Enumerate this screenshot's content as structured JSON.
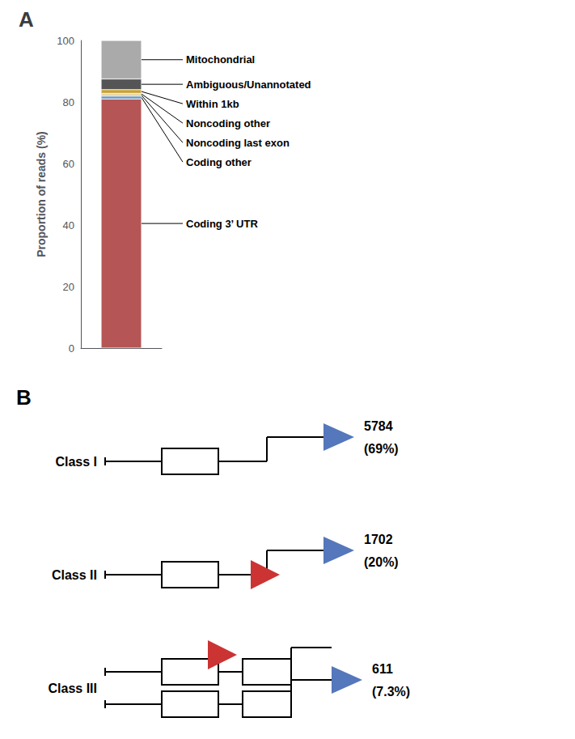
{
  "chart_data": [
    {
      "type": "bar",
      "title": "A",
      "stacked": true,
      "tick_labels": "y",
      "ylabel": "Proportion of reads (%)",
      "categories": [
        null
      ],
      "ylim": [
        0,
        100
      ],
      "yticks": [
        0,
        20,
        40,
        60,
        80,
        100
      ],
      "series": [
        {
          "name": "Coding 3’ UTR",
          "color": "#b55555",
          "values": [
            81.0
          ]
        },
        {
          "name": "Coding other",
          "color": "#6699cc",
          "values": [
            0.9
          ]
        },
        {
          "name": "Noncoding last exon",
          "color": "#c8a030",
          "values": [
            0.5
          ]
        },
        {
          "name": "Noncoding other",
          "color": "#c8a030",
          "values": [
            0.4
          ]
        },
        {
          "name": "Within 1kb",
          "color": "#c8a030",
          "values": [
            1.2
          ]
        },
        {
          "name": "Ambiguous/Unannotated",
          "color": "#555555",
          "values": [
            3.5
          ]
        },
        {
          "name": "Mitochondrial",
          "color": "#aaaaaa",
          "values": [
            12.5
          ]
        }
      ]
    },
    {
      "type": "diagram",
      "title": "B",
      "categories": [
        "Class I",
        "Class II",
        "Class III"
      ],
      "values": [
        5784,
        1702,
        611
      ],
      "percent_labels": [
        "(69%)",
        "(20%)",
        "(7.3%)"
      ],
      "red_arrow": [
        false,
        true,
        true
      ],
      "double": [
        false,
        false,
        true
      ],
      "arrow_colors": {
        "blue": "#5577bb",
        "red": "#cc3333"
      }
    }
  ]
}
